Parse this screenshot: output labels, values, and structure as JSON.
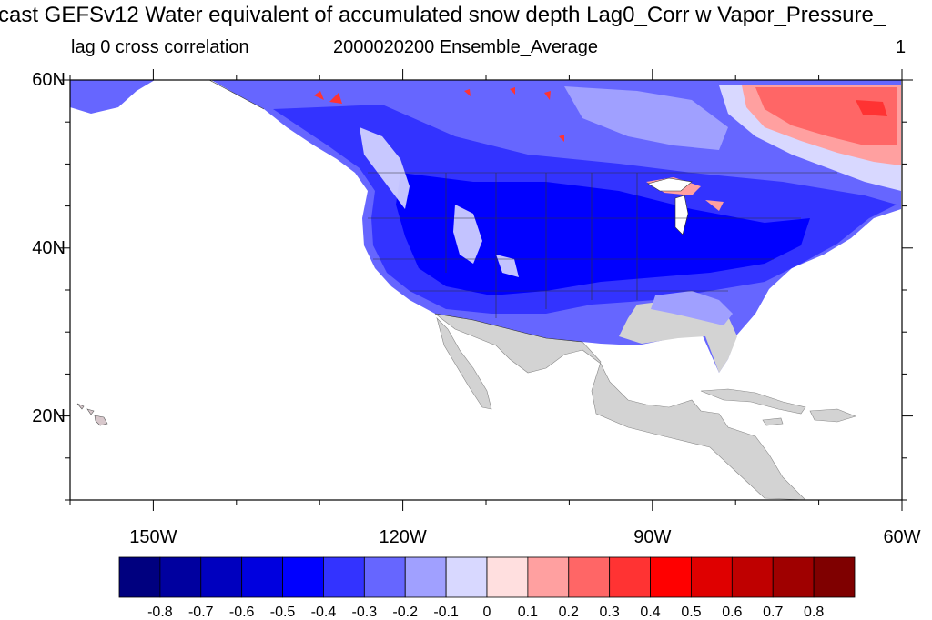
{
  "title": "cast GEFSv12 Water equivalent of accumulated snow depth Lag0_Corr w Vapor_Pressure_",
  "subtitle_left": "lag 0 cross correlation",
  "subtitle_center": "2000020200 Ensemble_Average",
  "subtitle_right": "1",
  "map": {
    "lon_range": [
      -160,
      -60
    ],
    "lat_range": [
      10,
      60
    ],
    "lat_ticks": [
      {
        "value": 60,
        "label": "60N"
      },
      {
        "value": 40,
        "label": "40N"
      },
      {
        "value": 20,
        "label": "20N"
      }
    ],
    "lon_ticks": [
      {
        "value": -150,
        "label": "150W"
      },
      {
        "value": -120,
        "label": "120W"
      },
      {
        "value": -90,
        "label": "90W"
      },
      {
        "value": -60,
        "label": "60W"
      }
    ],
    "missing_color": "#d3d3d3",
    "ocean_color": "#ffffff"
  },
  "colorbar": {
    "colors": [
      "#00007f",
      "#00009f",
      "#0000bf",
      "#0000df",
      "#0000ff",
      "#3333ff",
      "#6666ff",
      "#a0a0ff",
      "#d8d8ff",
      "#ffdfdf",
      "#ffa0a0",
      "#ff6666",
      "#ff3333",
      "#ff0000",
      "#df0000",
      "#bf0000",
      "#9f0000",
      "#7f0000"
    ],
    "labels": [
      "-0.8",
      "-0.7",
      "-0.6",
      "-0.5",
      "-0.4",
      "-0.3",
      "-0.2",
      "-0.1",
      "0",
      "0.1",
      "0.2",
      "0.3",
      "0.4",
      "0.5",
      "0.6",
      "0.7",
      "0.8"
    ]
  }
}
